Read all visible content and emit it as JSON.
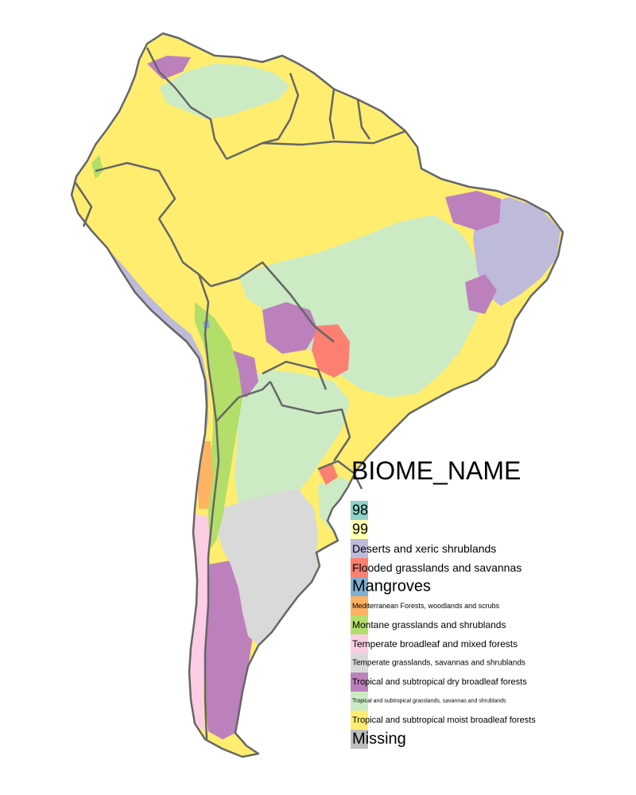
{
  "legend": {
    "title": "BIOME_NAME",
    "items": [
      {
        "label": "98",
        "color": "#8DD3C7"
      },
      {
        "label": "99",
        "color": "#FFFFB3"
      },
      {
        "label": "Deserts and xeric shrublands",
        "color": "#BEBADA"
      },
      {
        "label": "Flooded grasslands and savannas",
        "color": "#FB8072"
      },
      {
        "label": "Mangroves",
        "color": "#80B1D3"
      },
      {
        "label": "Mediterranean Forests, woodlands and scrubs",
        "color": "#FDB462"
      },
      {
        "label": "Montane grasslands and shrublands",
        "color": "#B3DE69"
      },
      {
        "label": "Temperate broadleaf and mixed forests",
        "color": "#FCCDE5"
      },
      {
        "label": "Temperate grasslands, savannas and shrublands",
        "color": "#D9D9D9"
      },
      {
        "label": "Tropical and subtropical dry broadleaf forests",
        "color": "#BC80BD"
      },
      {
        "label": "Tropical and subtropical grasslands, savannas and shrublands",
        "color": "#CCEBC5"
      },
      {
        "label": "Tropical and subtropical moist broadleaf forests",
        "color": "#FFED6F"
      },
      {
        "label": "Missing",
        "color": "#BEBEBE"
      }
    ]
  },
  "border_color": "#666666"
}
